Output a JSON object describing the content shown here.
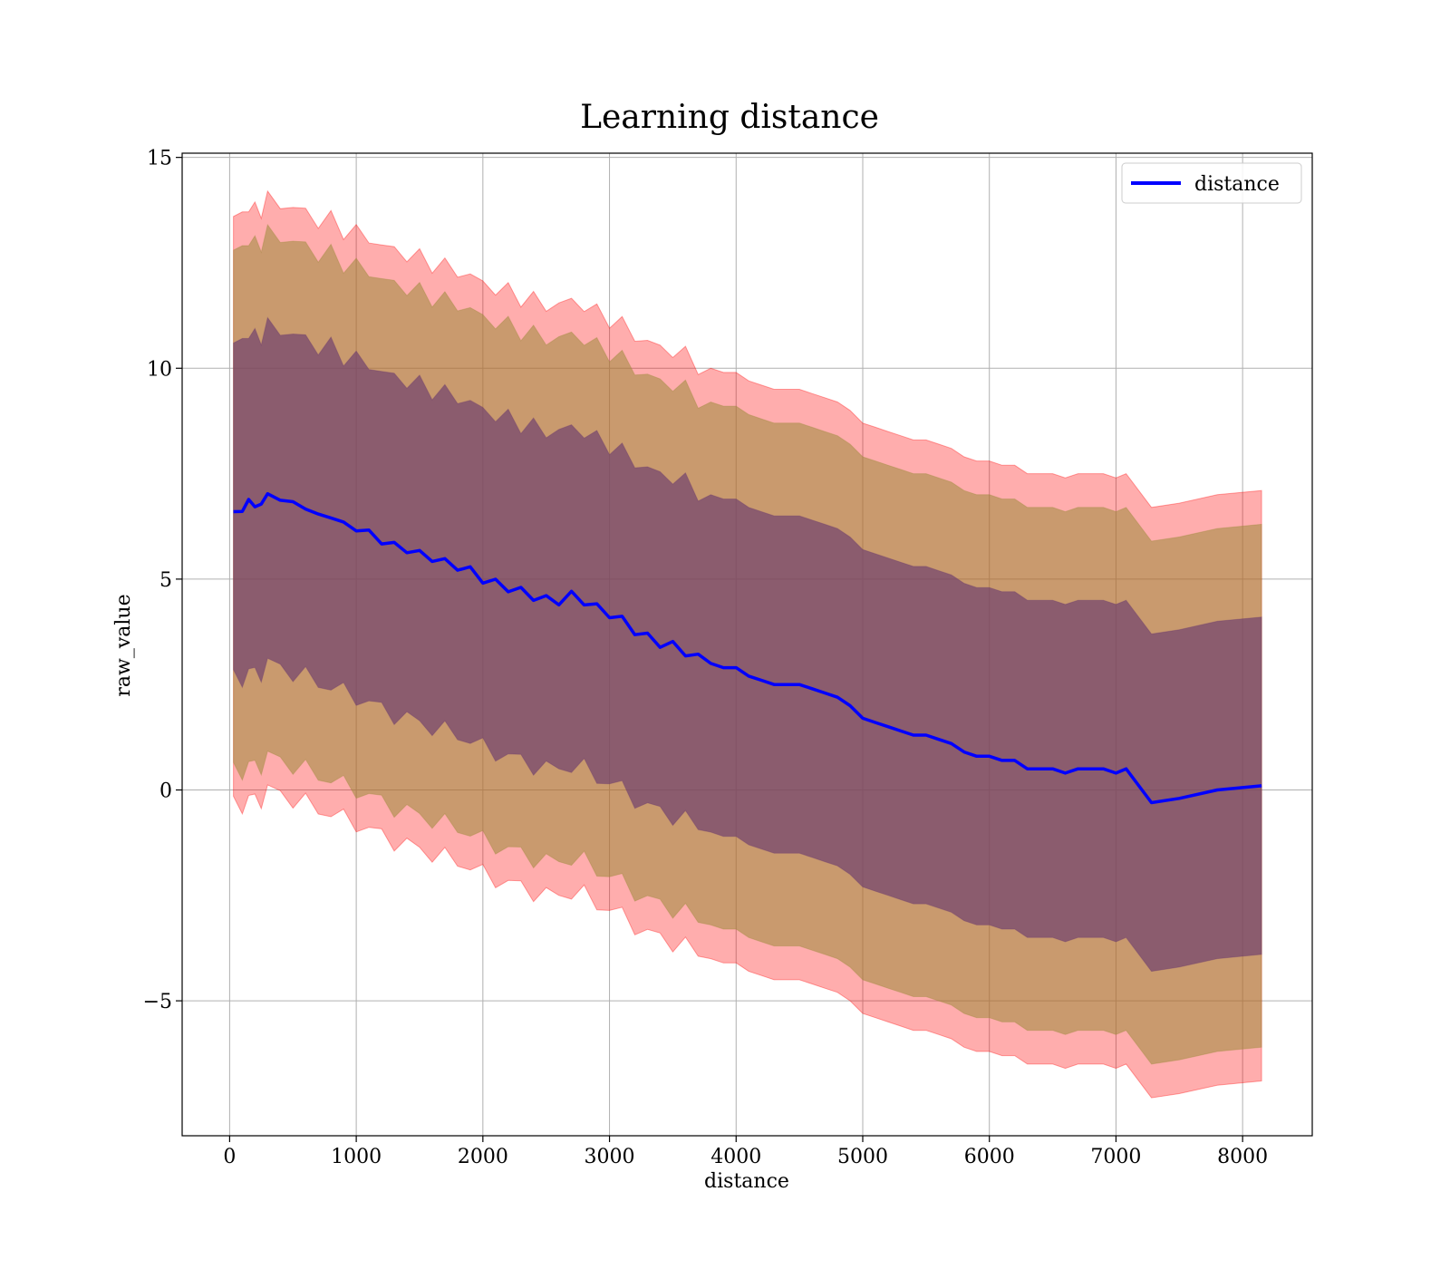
{
  "chart_data": {
    "type": "line",
    "title": "Learning distance",
    "xlabel": "distance",
    "ylabel": "raw_value",
    "xlim": [
      -375,
      8550
    ],
    "ylim": [
      -8.2,
      15.1
    ],
    "x_ticks": [
      0,
      1000,
      2000,
      3000,
      4000,
      5000,
      6000,
      7000,
      8000
    ],
    "x_tick_labels": [
      "0",
      "1000",
      "2000",
      "3000",
      "4000",
      "5000",
      "6000",
      "7000",
      "8000"
    ],
    "y_ticks": [
      -5,
      0,
      5,
      10,
      15
    ],
    "y_tick_labels": [
      "−5",
      "0",
      "5",
      "10",
      "15"
    ],
    "grid": true,
    "legend_position": "top-right",
    "colors": {
      "line": "#0000ff",
      "band_outer": "#ff0000",
      "band_middle": "#9c8a3a",
      "band_inner": "#6a3a6e"
    },
    "series": [
      {
        "name": "distance",
        "x": [
          30,
          100,
          150,
          200,
          250,
          300,
          400,
          500,
          600,
          700,
          800,
          900,
          1000,
          1100,
          1200,
          1300,
          1400,
          1500,
          1600,
          1700,
          1800,
          1900,
          2000,
          2100,
          2200,
          2300,
          2400,
          2500,
          2600,
          2700,
          2800,
          2900,
          3000,
          3100,
          3200,
          3300,
          3400,
          3500,
          3600,
          3700,
          3800,
          3900,
          4000,
          4100,
          4200,
          4300,
          4400,
          4500,
          4600,
          4700,
          4800,
          4900,
          5000,
          5100,
          5200,
          5300,
          5400,
          5500,
          5600,
          5700,
          5800,
          5900,
          6000,
          6100,
          6200,
          6300,
          6400,
          6500,
          6600,
          6700,
          6800,
          6900,
          7000,
          7080,
          7280,
          7500,
          7800,
          8150
        ],
        "values": [
          6.6,
          6.6,
          6.9,
          6.7,
          6.8,
          7.0,
          6.9,
          6.8,
          6.7,
          6.5,
          6.5,
          6.3,
          6.2,
          6.1,
          5.9,
          5.8,
          5.7,
          5.6,
          5.5,
          5.4,
          5.3,
          5.2,
          5.0,
          4.9,
          4.8,
          4.7,
          4.6,
          4.5,
          4.5,
          4.6,
          4.5,
          4.3,
          4.2,
          4.0,
          3.8,
          3.6,
          3.5,
          3.4,
          3.3,
          3.1,
          3.0,
          2.9,
          2.9,
          2.7,
          2.6,
          2.5,
          2.5,
          2.5,
          2.4,
          2.3,
          2.2,
          2.0,
          1.7,
          1.6,
          1.5,
          1.4,
          1.3,
          1.3,
          1.2,
          1.1,
          0.9,
          0.8,
          0.8,
          0.7,
          0.7,
          0.5,
          0.5,
          0.5,
          0.4,
          0.5,
          0.5,
          0.5,
          0.4,
          0.5,
          -0.3,
          -0.2,
          0.0,
          0.1
        ]
      }
    ],
    "bands": [
      {
        "level": "outer",
        "color": "#ff0000",
        "offset": 7.0
      },
      {
        "level": "middle",
        "color": "#9c8a3a",
        "offset": 6.2
      },
      {
        "level": "inner",
        "color": "#6a3a6e",
        "offset": 4.0
      }
    ]
  }
}
